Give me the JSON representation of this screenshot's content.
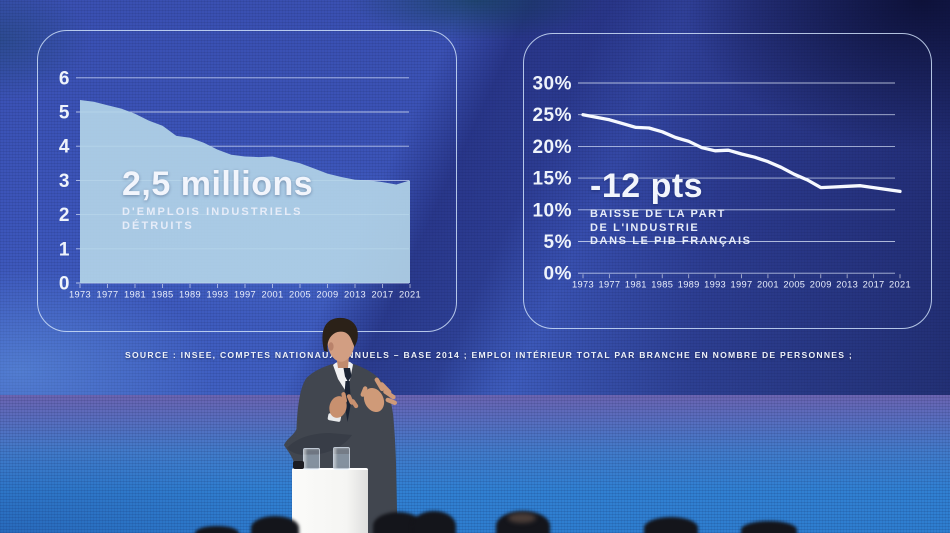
{
  "slide": {
    "source_line": "SOURCE : INSEE, COMPTES NATIONAUX ANNUELS – BASE 2014 ; EMPLOI INTÉRIEUR TOTAL PAR BRANCHE EN NOMBRE DE PERSONNES ;",
    "colors": {
      "screen_blue": "#3c55ba",
      "panel_border": "#cedff9",
      "area_fill": "#b5d6e9",
      "line_white": "#f6f9ff",
      "flag_navy": "#1c1d31",
      "flag_white": "#f4f2ee",
      "flag_red": "#e41c25",
      "stage_blue": "#2f80d3",
      "podium_white": "#f7f7f5"
    }
  },
  "chart_data": [
    {
      "type": "area",
      "callout": {
        "value": "2,5 millions",
        "lines": [
          "D'EMPLOIS INDUSTRIELS",
          "DÉTRUITS"
        ]
      },
      "x": [
        1973,
        1975,
        1977,
        1979,
        1981,
        1983,
        1985,
        1987,
        1989,
        1991,
        1993,
        1995,
        1997,
        1999,
        2001,
        2003,
        2005,
        2007,
        2009,
        2011,
        2013,
        2015,
        2017,
        2019,
        2021
      ],
      "values": [
        5.35,
        5.3,
        5.2,
        5.1,
        4.95,
        4.75,
        4.6,
        4.3,
        4.25,
        4.1,
        3.9,
        3.75,
        3.7,
        3.68,
        3.7,
        3.6,
        3.5,
        3.35,
        3.2,
        3.1,
        3.02,
        3.0,
        2.95,
        2.88,
        3.0
      ],
      "ylim": [
        0,
        6
      ],
      "yticks": [
        6,
        5,
        4,
        3,
        2,
        1,
        0
      ],
      "ytick_labels": [
        "6",
        "5",
        "4",
        "3",
        "2",
        "1",
        "0"
      ],
      "xtick_labels": [
        "1973",
        "1977",
        "1981",
        "1985",
        "1989",
        "1993",
        "1997",
        "2001",
        "2005",
        "2009",
        "2013",
        "2017",
        "2021"
      ],
      "grid": true,
      "legend": null,
      "fill": "#b5d6e9"
    },
    {
      "type": "line",
      "callout": {
        "value": "-12 pts",
        "lines": [
          "BAISSE DE LA PART",
          "DE L'INDUSTRIE",
          "DANS LE PIB FRANÇAIS"
        ]
      },
      "x": [
        1973,
        1975,
        1977,
        1979,
        1981,
        1983,
        1985,
        1987,
        1989,
        1991,
        1993,
        1995,
        1997,
        1999,
        2001,
        2003,
        2005,
        2007,
        2009,
        2011,
        2013,
        2015,
        2017,
        2019,
        2021
      ],
      "values": [
        25.0,
        24.6,
        24.2,
        23.6,
        23.0,
        22.9,
        22.3,
        21.4,
        20.8,
        19.8,
        19.3,
        19.4,
        18.8,
        18.3,
        17.6,
        16.7,
        15.6,
        14.7,
        13.5,
        13.6,
        13.7,
        13.8,
        13.5,
        13.2,
        12.9
      ],
      "ylim": [
        0,
        30
      ],
      "yticks": [
        30,
        25,
        20,
        15,
        10,
        5,
        0
      ],
      "ytick_labels": [
        "30%",
        "25%",
        "20%",
        "15%",
        "10%",
        "5%",
        "0%"
      ],
      "xtick_labels": [
        "1973",
        "1977",
        "1981",
        "1985",
        "1989",
        "1993",
        "1997",
        "2001",
        "2005",
        "2009",
        "2013",
        "2017",
        "2021"
      ],
      "grid": true,
      "legend": null,
      "stroke": "#f6f9ff"
    }
  ]
}
